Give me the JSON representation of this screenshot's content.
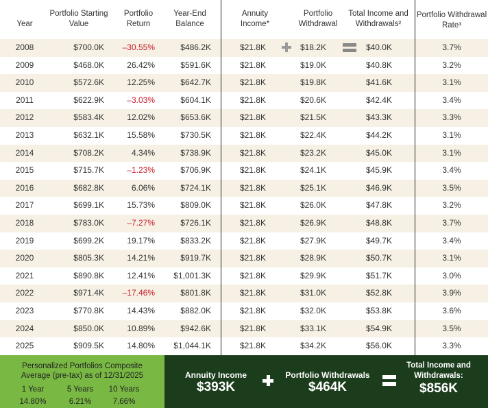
{
  "headers": {
    "year": "Year",
    "start": "Portfolio Starting Value",
    "ret": "Portfolio Return",
    "bal": "Year-End Balance",
    "annuity": "Annuity Income*",
    "withdrawal": "Portfolio Withdrawal",
    "total": "Total Income and Withdrawals²",
    "rate": "Portfolio Withdrawal Rate³"
  },
  "colors": {
    "negative": "#c8202f",
    "row_alt": "#f6f1e4",
    "light_green": "#79b943",
    "dark_green": "#1b3d1c"
  },
  "rows": [
    {
      "year": "2008",
      "start": "$700.0K",
      "ret": "–30.55%",
      "neg": true,
      "bal": "$486.2K",
      "annuity": "$21.8K",
      "withdrawal": "$18.2K",
      "total": "$40.0K",
      "rate": "3.7%"
    },
    {
      "year": "2009",
      "start": "$468.0K",
      "ret": "26.42%",
      "bal": "$591.6K",
      "annuity": "$21.8K",
      "withdrawal": "$19.0K",
      "total": "$40.8K",
      "rate": "3.2%"
    },
    {
      "year": "2010",
      "start": "$572.6K",
      "ret": "12.25%",
      "bal": "$642.7K",
      "annuity": "$21.8K",
      "withdrawal": "$19.8K",
      "total": "$41.6K",
      "rate": "3.1%"
    },
    {
      "year": "2011",
      "start": "$622.9K",
      "ret": "–3.03%",
      "neg": true,
      "bal": "$604.1K",
      "annuity": "$21.8K",
      "withdrawal": "$20.6K",
      "total": "$42.4K",
      "rate": "3.4%"
    },
    {
      "year": "2012",
      "start": "$583.4K",
      "ret": "12.02%",
      "bal": "$653.6K",
      "annuity": "$21.8K",
      "withdrawal": "$21.5K",
      "total": "$43.3K",
      "rate": "3.3%"
    },
    {
      "year": "2013",
      "start": "$632.1K",
      "ret": "15.58%",
      "bal": "$730.5K",
      "annuity": "$21.8K",
      "withdrawal": "$22.4K",
      "total": "$44.2K",
      "rate": "3.1%"
    },
    {
      "year": "2014",
      "start": "$708.2K",
      "ret": "4.34%",
      "bal": "$738.9K",
      "annuity": "$21.8K",
      "withdrawal": "$23.2K",
      "total": "$45.0K",
      "rate": "3.1%"
    },
    {
      "year": "2015",
      "start": "$715.7K",
      "ret": "–1.23%",
      "neg": true,
      "bal": "$706.9K",
      "annuity": "$21.8K",
      "withdrawal": "$24.1K",
      "total": "$45.9K",
      "rate": "3.4%"
    },
    {
      "year": "2016",
      "start": "$682.8K",
      "ret": "6.06%",
      "bal": "$724.1K",
      "annuity": "$21.8K",
      "withdrawal": "$25.1K",
      "total": "$46.9K",
      "rate": "3.5%"
    },
    {
      "year": "2017",
      "start": "$699.1K",
      "ret": "15.73%",
      "bal": "$809.0K",
      "annuity": "$21.8K",
      "withdrawal": "$26.0K",
      "total": "$47.8K",
      "rate": "3.2%"
    },
    {
      "year": "2018",
      "start": "$783.0K",
      "ret": "–7.27%",
      "neg": true,
      "bal": "$726.1K",
      "annuity": "$21.8K",
      "withdrawal": "$26.9K",
      "total": "$48.8K",
      "rate": "3.7%"
    },
    {
      "year": "2019",
      "start": "$699.2K",
      "ret": "19.17%",
      "bal": "$833.2K",
      "annuity": "$21.8K",
      "withdrawal": "$27.9K",
      "total": "$49.7K",
      "rate": "3.4%"
    },
    {
      "year": "2020",
      "start": "$805.3K",
      "ret": "14.21%",
      "bal": "$919.7K",
      "annuity": "$21.8K",
      "withdrawal": "$28.9K",
      "total": "$50.7K",
      "rate": "3.1%"
    },
    {
      "year": "2021",
      "start": "$890.8K",
      "ret": "12.41%",
      "bal": "$1,001.3K",
      "annuity": "$21.8K",
      "withdrawal": "$29.9K",
      "total": "$51.7K",
      "rate": "3.0%"
    },
    {
      "year": "2022",
      "start": "$971.4K",
      "ret": "–17.46%",
      "neg": true,
      "bal": "$801.8K",
      "annuity": "$21.8K",
      "withdrawal": "$31.0K",
      "total": "$52.8K",
      "rate": "3.9%"
    },
    {
      "year": "2023",
      "start": "$770.8K",
      "ret": "14.43%",
      "bal": "$882.0K",
      "annuity": "$21.8K",
      "withdrawal": "$32.0K",
      "total": "$53.8K",
      "rate": "3.6%"
    },
    {
      "year": "2024",
      "start": "$850.0K",
      "ret": "10.89%",
      "bal": "$942.6K",
      "annuity": "$21.8K",
      "withdrawal": "$33.1K",
      "total": "$54.9K",
      "rate": "3.5%"
    },
    {
      "year": "2025",
      "start": "$909.5K",
      "ret": "14.80%",
      "bal": "$1,044.1K",
      "annuity": "$21.8K",
      "withdrawal": "$34.2K",
      "total": "$56.0K",
      "rate": "3.3%"
    }
  ],
  "composite": {
    "title_line1": "Personalized Portfolios Composite",
    "title_line2": "Average (pre-tax) as of 12/31/2025",
    "periods": [
      {
        "label": "1 Year",
        "value": "14.80%"
      },
      {
        "label": "5 Years",
        "value": "6.21%"
      },
      {
        "label": "10 Years",
        "value": "7.66%"
      }
    ]
  },
  "summary": {
    "annuity_label": "Annuity Income",
    "annuity_value": "$393K",
    "withdrawal_label": "Portfolio Withdrawals",
    "withdrawal_value": "$464K",
    "total_label_line1": "Total Income and",
    "total_label_line2": "Withdrawals:",
    "total_value": "$856K"
  }
}
